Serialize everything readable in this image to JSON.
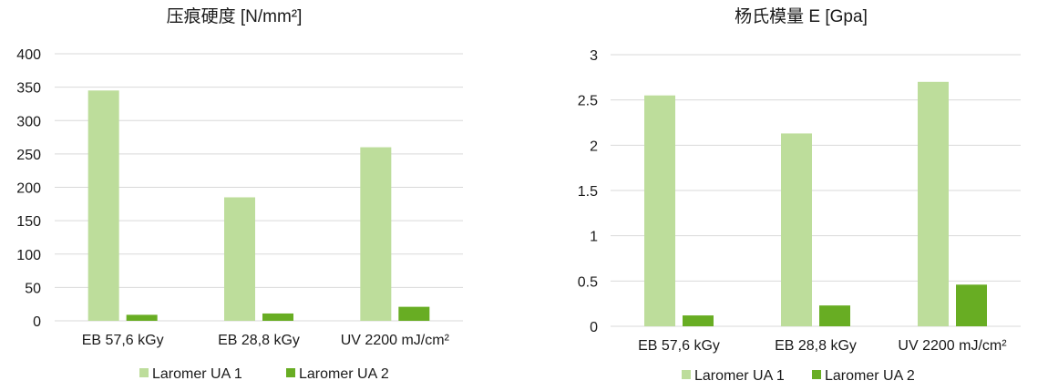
{
  "chart_data": [
    {
      "type": "bar",
      "title": "压痕硬度 [N/mm²]",
      "categories": [
        "EB 57,6 kGy",
        "EB 28,8 kGy",
        "UV 2200 mJ/cm²"
      ],
      "series": [
        {
          "name": "Laromer UA 1",
          "values": [
            345,
            185,
            260
          ],
          "color": "#bddd9b"
        },
        {
          "name": "Laromer UA 2",
          "values": [
            9,
            11,
            21
          ],
          "color": "#68ad23"
        }
      ],
      "ylim": [
        0,
        400
      ],
      "yticks": [
        "0",
        "50",
        "100",
        "150",
        "200",
        "250",
        "300",
        "350",
        "400"
      ],
      "grid": true,
      "legend": "bottom"
    },
    {
      "type": "bar",
      "title": "杨氏模量 E [Gpa]",
      "categories": [
        "EB 57,6 kGy",
        "EB 28,8 kGy",
        "UV 2200 mJ/cm²"
      ],
      "series": [
        {
          "name": "Laromer UA 1",
          "values": [
            2.55,
            2.13,
            2.7
          ],
          "color": "#bddd9b"
        },
        {
          "name": "Laromer UA 2",
          "values": [
            0.12,
            0.23,
            0.46
          ],
          "color": "#68ad23"
        }
      ],
      "ylim": [
        0,
        3
      ],
      "yticks": [
        "0",
        "0.5",
        "1",
        "1.5",
        "2",
        "2.5",
        "3"
      ],
      "grid": true,
      "legend": "bottom"
    }
  ]
}
